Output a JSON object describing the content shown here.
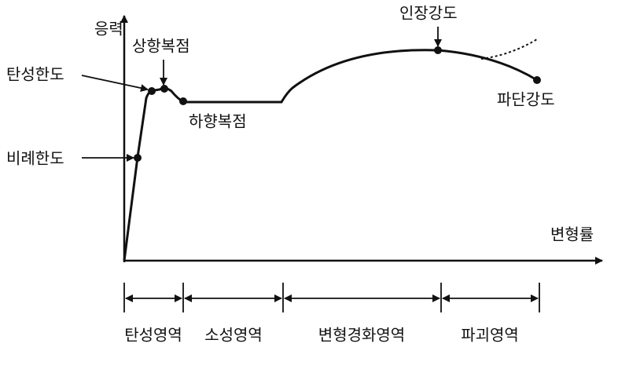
{
  "axes": {
    "y_label": "응력",
    "x_label": "변형률"
  },
  "points": [
    {
      "label": "비례한도"
    },
    {
      "label": "탄성한도"
    },
    {
      "label": "상항복점"
    },
    {
      "label": "하향복점"
    },
    {
      "label": "인장강도"
    },
    {
      "label": "파단강도"
    }
  ],
  "regions": [
    {
      "label": "탄성영역"
    },
    {
      "label": "소성영역"
    },
    {
      "label": "변형경화영역"
    },
    {
      "label": "파괴영역"
    }
  ]
}
